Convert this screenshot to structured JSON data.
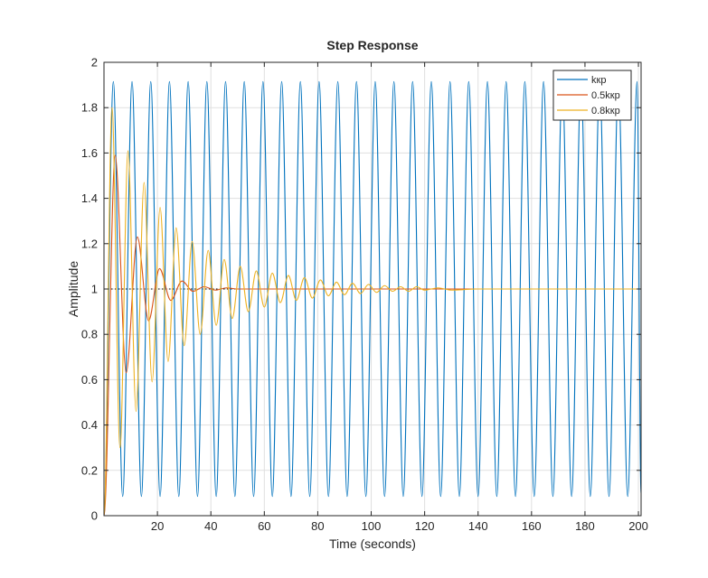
{
  "chart_data": {
    "type": "line",
    "title": "Step Response",
    "xlabel": "Time (seconds)",
    "ylabel": "Amplitude",
    "xlim": [
      0,
      201
    ],
    "ylim": [
      0,
      2
    ],
    "xticks": [
      20,
      40,
      60,
      80,
      100,
      120,
      140,
      160,
      180,
      200
    ],
    "yticks": [
      0,
      0.2,
      0.4,
      0.6,
      0.8,
      1,
      1.2,
      1.4,
      1.6,
      1.8,
      2
    ],
    "xtick_labels": [
      "20",
      "40",
      "60",
      "80",
      "100",
      "120",
      "140",
      "160",
      "180",
      "200"
    ],
    "ytick_labels": [
      "0",
      "0.2",
      "0.4",
      "0.6",
      "0.8",
      "1",
      "1.2",
      "1.4",
      "1.6",
      "1.8",
      "2"
    ],
    "grid": true,
    "legend_position": "top-right",
    "reference_line": {
      "y": 1,
      "style": "dotted",
      "color": "#000000"
    },
    "series": [
      {
        "name": "kкp",
        "color": "#0072BD",
        "x": [
          0,
          3.5,
          7,
          10.5,
          14,
          17.5,
          21,
          24.5,
          28,
          31.5,
          35,
          38.5,
          42,
          45.5,
          49,
          52.5,
          56,
          59.5,
          63,
          66.5,
          70,
          73.5,
          77,
          80.5,
          84,
          87.5,
          91,
          94.5,
          98,
          101.5,
          105,
          108.5,
          112,
          115.5,
          119,
          122.5,
          126,
          129.5,
          133,
          136.5,
          140,
          143.5,
          147,
          150.5,
          154,
          157.5,
          161,
          164.5,
          168,
          171.5,
          175,
          178.5,
          182,
          185.5,
          189,
          192.5,
          196,
          199.5,
          201
        ],
        "y": [
          0,
          1.915,
          0.085,
          1.915,
          0.085,
          1.915,
          0.085,
          1.915,
          0.085,
          1.915,
          0.085,
          1.915,
          0.085,
          1.915,
          0.085,
          1.915,
          0.085,
          1.915,
          0.085,
          1.915,
          0.085,
          1.915,
          0.085,
          1.915,
          0.085,
          1.915,
          0.085,
          1.915,
          0.085,
          1.915,
          0.085,
          1.915,
          0.085,
          1.915,
          0.085,
          1.915,
          0.085,
          1.915,
          0.085,
          1.915,
          0.085,
          1.915,
          0.085,
          1.915,
          0.085,
          1.915,
          0.085,
          1.915,
          0.085,
          1.915,
          0.085,
          1.915,
          0.085,
          1.915,
          0.085,
          1.915,
          0.085,
          1.915,
          0.09
        ]
      },
      {
        "name": "0.5kкp",
        "color": "#D95319",
        "x": [
          0,
          4.2,
          8.3,
          12.5,
          16.7,
          20.8,
          25,
          29.2,
          33.3,
          37.5,
          41.7,
          45.8,
          50,
          58,
          70,
          90,
          120,
          160,
          201
        ],
        "y": [
          0,
          1.59,
          0.63,
          1.23,
          0.86,
          1.09,
          0.95,
          1.035,
          0.99,
          1.01,
          0.995,
          1.005,
          1.0,
          1.0,
          1.0,
          1.0,
          1.0,
          1.0,
          1.0
        ]
      },
      {
        "name": "0.8kкp",
        "color": "#EDB120",
        "x": [
          0,
          3,
          6,
          9,
          12,
          15,
          18,
          21,
          24,
          27,
          30,
          33,
          36,
          39,
          42,
          45,
          48,
          51,
          54,
          57,
          60,
          63,
          66,
          69,
          72,
          75,
          78,
          81,
          84,
          87,
          90,
          93,
          96,
          99,
          102,
          105,
          108,
          111,
          114,
          117,
          120,
          125,
          130,
          140,
          160,
          180,
          201
        ],
        "y": [
          0,
          1.8,
          0.3,
          1.61,
          0.46,
          1.47,
          0.59,
          1.36,
          0.68,
          1.27,
          0.75,
          1.21,
          0.8,
          1.17,
          0.84,
          1.13,
          0.87,
          1.1,
          0.9,
          1.08,
          0.92,
          1.07,
          0.94,
          1.06,
          0.95,
          1.05,
          0.96,
          1.04,
          0.97,
          1.03,
          0.975,
          1.025,
          0.98,
          1.02,
          0.985,
          1.015,
          0.99,
          1.01,
          0.99,
          1.01,
          0.995,
          1.005,
          0.995,
          1.0,
          1.0,
          1.0,
          1.0
        ]
      }
    ]
  }
}
